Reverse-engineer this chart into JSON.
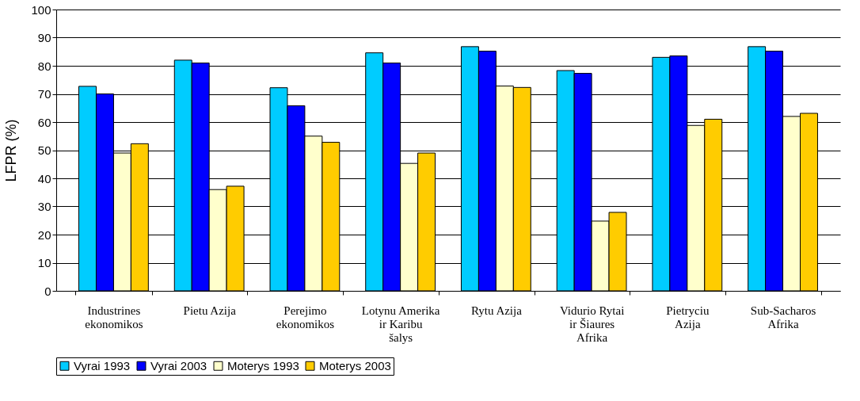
{
  "chart_data": {
    "type": "bar",
    "ylabel": "LFPR (%)",
    "categories": [
      "Industrines ekonomikos",
      "Pietu Azija",
      "Perejimo ekonomikos",
      "Lotynu Amerika ir Karibu šalys",
      "Rytu Azija",
      "Vidurio Rytai ir Šiaures Afrika",
      "Pietryciu Azija",
      "Sub-Sacharos Afrika"
    ],
    "series": [
      {
        "name": "Vyrai 1993",
        "color": "#00ccff",
        "values": [
          72.7,
          82,
          72.2,
          84.6,
          86.8,
          78.3,
          83,
          86.8
        ]
      },
      {
        "name": "Vyrai 2003",
        "color": "#0000ff",
        "values": [
          70,
          81,
          65.8,
          81,
          85.2,
          77.3,
          83.5,
          85.2
        ]
      },
      {
        "name": "Moterys 1993",
        "color": "#ffffcc",
        "values": [
          49,
          36,
          55,
          45.3,
          72.8,
          24.8,
          58.8,
          62
        ]
      },
      {
        "name": "Moterys 2003",
        "color": "#ffcc00",
        "values": [
          52.3,
          37.2,
          52.8,
          49,
          72.3,
          27.9,
          61,
          63.1
        ]
      }
    ],
    "ylim": [
      0,
      100
    ],
    "yticks": [
      0,
      10,
      20,
      30,
      40,
      50,
      60,
      70,
      80,
      90,
      100
    ],
    "grid": "y",
    "legend": "bottom"
  }
}
